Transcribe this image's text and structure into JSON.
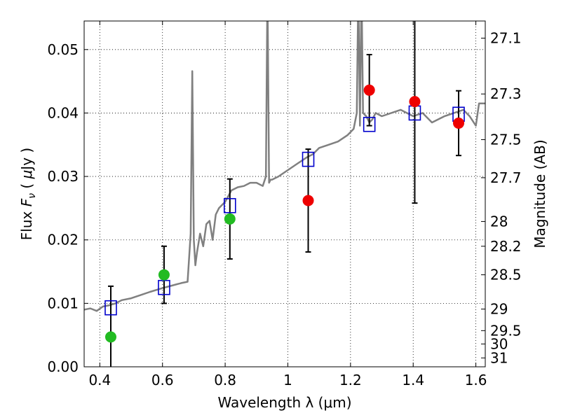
{
  "chart_data": {
    "type": "scatter",
    "xlabel": "Wavelength  λ (μm)",
    "ylabel": "Flux  F_ν  ( μJy )",
    "ylabel_right": "Magnitude (AB)",
    "xlim": [
      0.35,
      1.63
    ],
    "ylim": [
      0.0,
      0.0545
    ],
    "grid": true,
    "x_ticks": [
      0.4,
      0.6,
      0.8,
      1.0,
      1.2,
      1.4,
      1.6
    ],
    "x_tick_labels": [
      "0.4",
      "0.6",
      "0.8",
      "1",
      "1.2",
      "1.4",
      "1.6"
    ],
    "y_ticks": [
      0.0,
      0.01,
      0.02,
      0.03,
      0.04,
      0.05
    ],
    "y_tick_labels": [
      "0.00",
      "0.01",
      "0.02",
      "0.03",
      "0.04",
      "0.05"
    ],
    "right_ticks": [
      {
        "flux": 0.0518,
        "label": "27.1"
      },
      {
        "flux": 0.043,
        "label": "27.3"
      },
      {
        "flux": 0.0358,
        "label": "27.5"
      },
      {
        "flux": 0.0298,
        "label": "27.7"
      },
      {
        "flux": 0.0229,
        "label": "28"
      },
      {
        "flux": 0.019,
        "label": "28.2"
      },
      {
        "flux": 0.0145,
        "label": "28.5"
      },
      {
        "flux": 0.0091,
        "label": "29"
      },
      {
        "flux": 0.0057,
        "label": "29.5"
      },
      {
        "flux": 0.0036,
        "label": "30"
      },
      {
        "flux": 0.0014,
        "label": "31"
      }
    ],
    "series": [
      {
        "kind": "line",
        "color": "#808080",
        "x": [
          0.35,
          0.37,
          0.39,
          0.41,
          0.43,
          0.45,
          0.47,
          0.5,
          0.53,
          0.56,
          0.6,
          0.63,
          0.66,
          0.68,
          0.69,
          0.695,
          0.7,
          0.705,
          0.71,
          0.72,
          0.73,
          0.74,
          0.75,
          0.76,
          0.77,
          0.78,
          0.8,
          0.82,
          0.84,
          0.86,
          0.88,
          0.9,
          0.92,
          0.93,
          0.935,
          0.94,
          0.945,
          0.95,
          0.97,
          1.0,
          1.03,
          1.06,
          1.08,
          1.1,
          1.13,
          1.16,
          1.19,
          1.21,
          1.22,
          1.225,
          1.23,
          1.235,
          1.24,
          1.25,
          1.26,
          1.27,
          1.28,
          1.3,
          1.33,
          1.36,
          1.4,
          1.43,
          1.46,
          1.5,
          1.53,
          1.56,
          1.58,
          1.6,
          1.61,
          1.63
        ],
        "y": [
          0.009,
          0.0092,
          0.0088,
          0.0095,
          0.0097,
          0.01,
          0.0105,
          0.0108,
          0.0113,
          0.0118,
          0.0124,
          0.0128,
          0.0132,
          0.0134,
          0.021,
          0.0466,
          0.02,
          0.016,
          0.018,
          0.021,
          0.019,
          0.0225,
          0.023,
          0.02,
          0.024,
          0.025,
          0.026,
          0.0278,
          0.0283,
          0.0285,
          0.029,
          0.029,
          0.0285,
          0.03,
          0.06,
          0.029,
          0.0295,
          0.0295,
          0.03,
          0.031,
          0.032,
          0.033,
          0.0335,
          0.0345,
          0.035,
          0.0355,
          0.0365,
          0.0375,
          0.04,
          0.06,
          0.038,
          0.06,
          0.04,
          0.0395,
          0.0385,
          0.039,
          0.04,
          0.0395,
          0.04,
          0.0405,
          0.0395,
          0.04,
          0.0385,
          0.0395,
          0.04,
          0.0405,
          0.0395,
          0.038,
          0.0415,
          0.0415
        ]
      },
      {
        "kind": "open-squares",
        "color": "#0000cc",
        "x": [
          0.435,
          0.605,
          0.815,
          1.065,
          1.26,
          1.405,
          1.545
        ],
        "y": [
          0.0093,
          0.0125,
          0.0254,
          0.0327,
          0.0382,
          0.04,
          0.0398
        ]
      },
      {
        "kind": "points",
        "color": "#22bb22",
        "x": [
          0.435,
          0.605,
          0.815
        ],
        "y": [
          0.0047,
          0.0145,
          0.0233
        ],
        "err": [
          0.008,
          0.0045,
          0.0063
        ]
      },
      {
        "kind": "points",
        "color": "#ee0000",
        "x": [
          1.065,
          1.26,
          1.405,
          1.545
        ],
        "y": [
          0.0262,
          0.0436,
          0.0418,
          0.0384
        ],
        "err": [
          0.0081,
          0.0056,
          0.016,
          0.0051
        ]
      }
    ]
  }
}
